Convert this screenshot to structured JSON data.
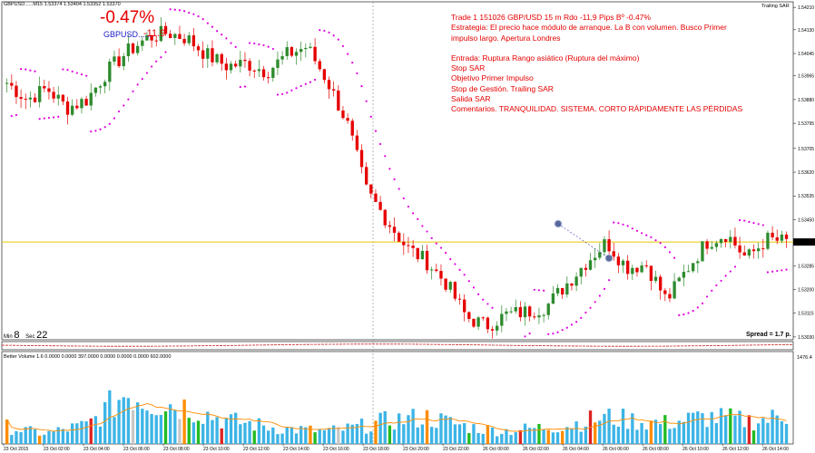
{
  "chart": {
    "symbol_header": "GBPUSD......M15  1.53374  1.53404  1.53352  1.53370",
    "indicator_label": "Trailing SAR",
    "trade_pct": "-0.47%",
    "trade_label": "GBPUSD......",
    "trade_value": "-11.9",
    "timer": {
      "min_label": "Min",
      "min_value": "8",
      "sec_label": "Sec",
      "sec_value": "22"
    },
    "spread": "Spread = 1.7 p.",
    "volume_header": "Better Volume 1.6 0.0000 0.0000 397.0000 0.0000 0.0000 0.0000 602.0000",
    "volume_max": "1476.4",
    "notes": [
      "Trade 1 151026 GBP/USD 15 m Rdo -11,9 Pips Bº -0.47%",
      "Estrategia: El precio hace módulo de arranque. La B con volumen. Busco Primer",
      "impulso largo. Apertura Londres",
      "",
      "Entrada: Ruptura Rango asiático  (Ruptura del máximo)",
      "Stop SAR",
      "Objetivo Primer Impulso",
      "Stop de Gestión. Trailing SAR",
      "Salida SAR",
      "Comentarios. TRANQUILIDAD. SISTEMA. CORTO RÁPIDAMENTE LAS PÉRDIDAS"
    ],
    "colors": {
      "bull": "#2e8b2e",
      "bear": "#e60000",
      "sar": "#e000e0",
      "price_line": "#e8c800",
      "vol_line": "#ff8c00",
      "vol_blue": "#3cb4e6",
      "vol_green": "#22bb22",
      "vol_red": "#dd2222",
      "vol_orange": "#ff8c00",
      "vol_white": "#c8c8c8"
    }
  },
  "chart_data": {
    "type": "candlestick",
    "ylim": [
      1.5302,
      1.5423
    ],
    "y_ticks": [
      "1.54210",
      "1.54130",
      "1.54045",
      "1.53965",
      "1.53880",
      "1.53795",
      "1.53705",
      "1.53620",
      "1.53535",
      "1.53450",
      "1.53370",
      "1.53285",
      "1.53200",
      "1.53115",
      "1.53030"
    ],
    "current_price": "1.53370",
    "x_labels": [
      "23 Oct 2015",
      "23 Oct 02:00",
      "23 Oct 04:00",
      "23 Oct 06:00",
      "23 Oct 08:00",
      "23 Oct 10:00",
      "23 Oct 12:00",
      "23 Oct 14:00",
      "23 Oct 16:00",
      "23 Oct 18:00",
      "23 Oct 20:00",
      "23 Oct 22:00",
      "26 Oct 00:00",
      "26 Oct 02:00",
      "26 Oct 04:00",
      "26 Oct 06:00",
      "26 Oct 08:00",
      "26 Oct 10:00",
      "26 Oct 12:00",
      "26 Oct 14:00"
    ],
    "close_anchors": [
      1.5394,
      1.5388,
      1.5392,
      1.5385,
      1.5388,
      1.5398,
      1.5405,
      1.541,
      1.5412,
      1.541,
      1.5404,
      1.54,
      1.5401,
      1.5398,
      1.5404,
      1.5407,
      1.5395,
      1.538,
      1.5355,
      1.5345,
      1.5335,
      1.533,
      1.5322,
      1.531,
      1.5307,
      1.5311,
      1.5312,
      1.5314,
      1.5322,
      1.533,
      1.5337,
      1.5328,
      1.5329,
      1.5316,
      1.5327,
      1.5337,
      1.534,
      1.5331,
      1.5338,
      1.5337
    ],
    "volume_anchors": [
      300,
      220,
      180,
      260,
      320,
      600,
      900,
      750,
      700,
      650,
      520,
      400,
      360,
      300,
      260,
      240,
      220,
      260,
      320,
      400,
      430,
      460,
      380,
      300,
      250,
      230,
      260,
      290,
      320,
      400,
      460,
      420,
      380,
      360,
      420,
      460,
      440,
      400,
      420,
      500
    ]
  }
}
